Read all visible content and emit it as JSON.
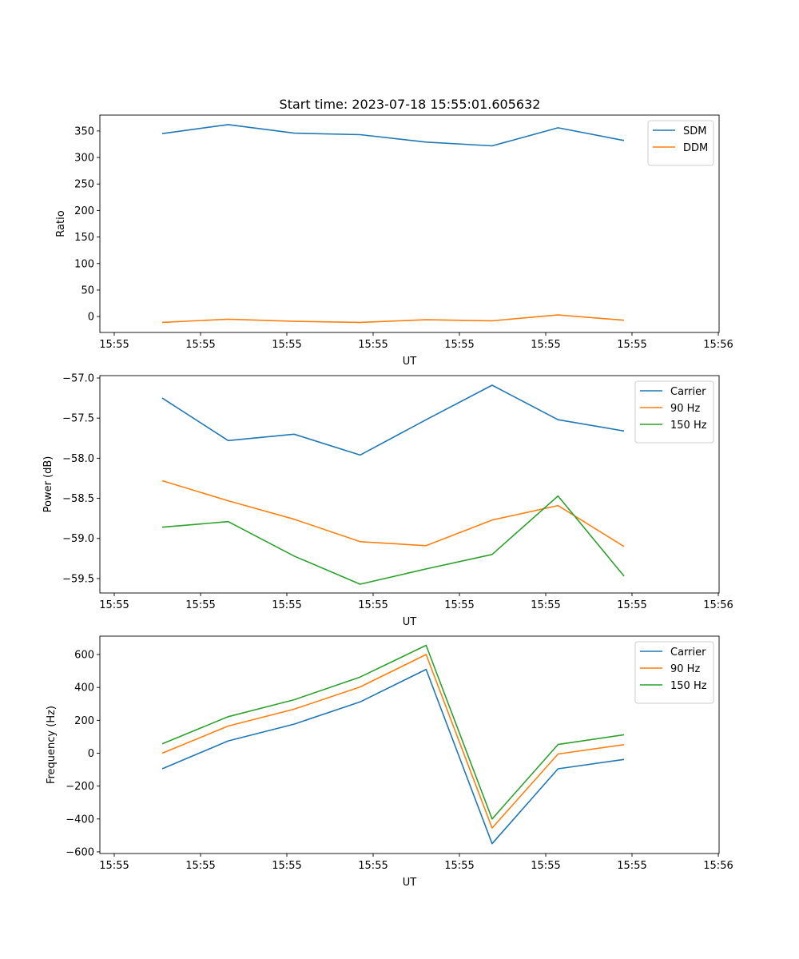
{
  "figure": {
    "title": "Start time: 2023-07-18 15:55:01.605632"
  },
  "chart_data": [
    {
      "type": "line",
      "title": "Start time: 2023-07-18 15:55:01.605632",
      "xlabel": "UT",
      "ylabel": "Ratio",
      "x_tick_labels": [
        "15:55",
        "15:55",
        "15:55",
        "15:55",
        "15:55",
        "15:55",
        "15:55",
        "15:56"
      ],
      "y_ticks": [
        0,
        50,
        100,
        150,
        200,
        250,
        300,
        350
      ],
      "y_tick_labels": [
        "0",
        "50",
        "100",
        "150",
        "200",
        "250",
        "300",
        "350"
      ],
      "ylim": [
        -30,
        380
      ],
      "xlim": [
        -0.23,
        9.13
      ],
      "legend_position": "top-right",
      "series": [
        {
          "name": "SDM",
          "color": "#1f77b4",
          "x": [
            0.5,
            1.5,
            2.5,
            3.5,
            4.5,
            5.5,
            6.5,
            7.5
          ],
          "values": [
            345,
            362,
            346,
            343,
            329,
            322,
            356,
            332
          ]
        },
        {
          "name": "DDM",
          "color": "#ff7f0e",
          "x": [
            0.5,
            1.5,
            2.5,
            3.5,
            4.5,
            5.5,
            6.5,
            7.5
          ],
          "values": [
            -11,
            -5,
            -9,
            -11,
            -6,
            -8,
            3,
            -7
          ]
        }
      ]
    },
    {
      "type": "line",
      "title": "",
      "xlabel": "UT",
      "ylabel": "Power (dB)",
      "x_tick_labels": [
        "15:55",
        "15:55",
        "15:55",
        "15:55",
        "15:55",
        "15:55",
        "15:55",
        "15:56"
      ],
      "y_ticks": [
        -57.0,
        -57.5,
        -58.0,
        -58.5,
        -59.0,
        -59.5
      ],
      "y_tick_labels": [
        "−57.0",
        "−57.5",
        "−58.0",
        "−58.5",
        "−59.0",
        "−59.5"
      ],
      "ylim": [
        -59.68,
        -56.97
      ],
      "xlim": [
        -0.23,
        9.13
      ],
      "legend_position": "top-right",
      "series": [
        {
          "name": "Carrier",
          "color": "#1f77b4",
          "x": [
            0.5,
            1.5,
            2.5,
            3.5,
            4.5,
            5.5,
            6.5,
            7.5
          ],
          "values": [
            -57.25,
            -57.78,
            -57.7,
            -57.96,
            -57.52,
            -57.09,
            -57.52,
            -57.66
          ]
        },
        {
          "name": "90 Hz",
          "color": "#ff7f0e",
          "x": [
            0.5,
            1.5,
            2.5,
            3.5,
            4.5,
            5.5,
            6.5,
            7.5
          ],
          "values": [
            -58.28,
            -58.53,
            -58.76,
            -59.04,
            -59.09,
            -58.77,
            -58.59,
            -59.1
          ]
        },
        {
          "name": "150 Hz",
          "color": "#2ca02c",
          "x": [
            0.5,
            1.5,
            2.5,
            3.5,
            4.5,
            5.5,
            6.5,
            7.5
          ],
          "values": [
            -58.86,
            -58.79,
            -59.22,
            -59.57,
            -59.38,
            -59.2,
            -58.47,
            -59.47
          ]
        }
      ]
    },
    {
      "type": "line",
      "title": "",
      "xlabel": "UT",
      "ylabel": "Frequency (Hz)",
      "x_tick_labels": [
        "15:55",
        "15:55",
        "15:55",
        "15:55",
        "15:55",
        "15:55",
        "15:55",
        "15:56"
      ],
      "y_ticks": [
        -600,
        -400,
        -200,
        0,
        200,
        400,
        600
      ],
      "y_tick_labels": [
        "−600",
        "−400",
        "−200",
        "0",
        "200",
        "400",
        "600"
      ],
      "ylim": [
        -610,
        712
      ],
      "xlim": [
        -0.23,
        9.13
      ],
      "legend_position": "top-right",
      "series": [
        {
          "name": "Carrier",
          "color": "#1f77b4",
          "x": [
            0.5,
            1.5,
            2.5,
            3.5,
            4.5,
            5.5,
            6.5,
            7.5
          ],
          "values": [
            -95,
            75,
            177,
            312,
            510,
            -550,
            -95,
            -38
          ]
        },
        {
          "name": "90 Hz",
          "color": "#ff7f0e",
          "x": [
            0.5,
            1.5,
            2.5,
            3.5,
            4.5,
            5.5,
            6.5,
            7.5
          ],
          "values": [
            0,
            165,
            268,
            403,
            600,
            -455,
            -5,
            52
          ]
        },
        {
          "name": "150 Hz",
          "color": "#2ca02c",
          "x": [
            0.5,
            1.5,
            2.5,
            3.5,
            4.5,
            5.5,
            6.5,
            7.5
          ],
          "values": [
            57,
            222,
            325,
            463,
            656,
            -400,
            53,
            112
          ]
        }
      ]
    }
  ]
}
